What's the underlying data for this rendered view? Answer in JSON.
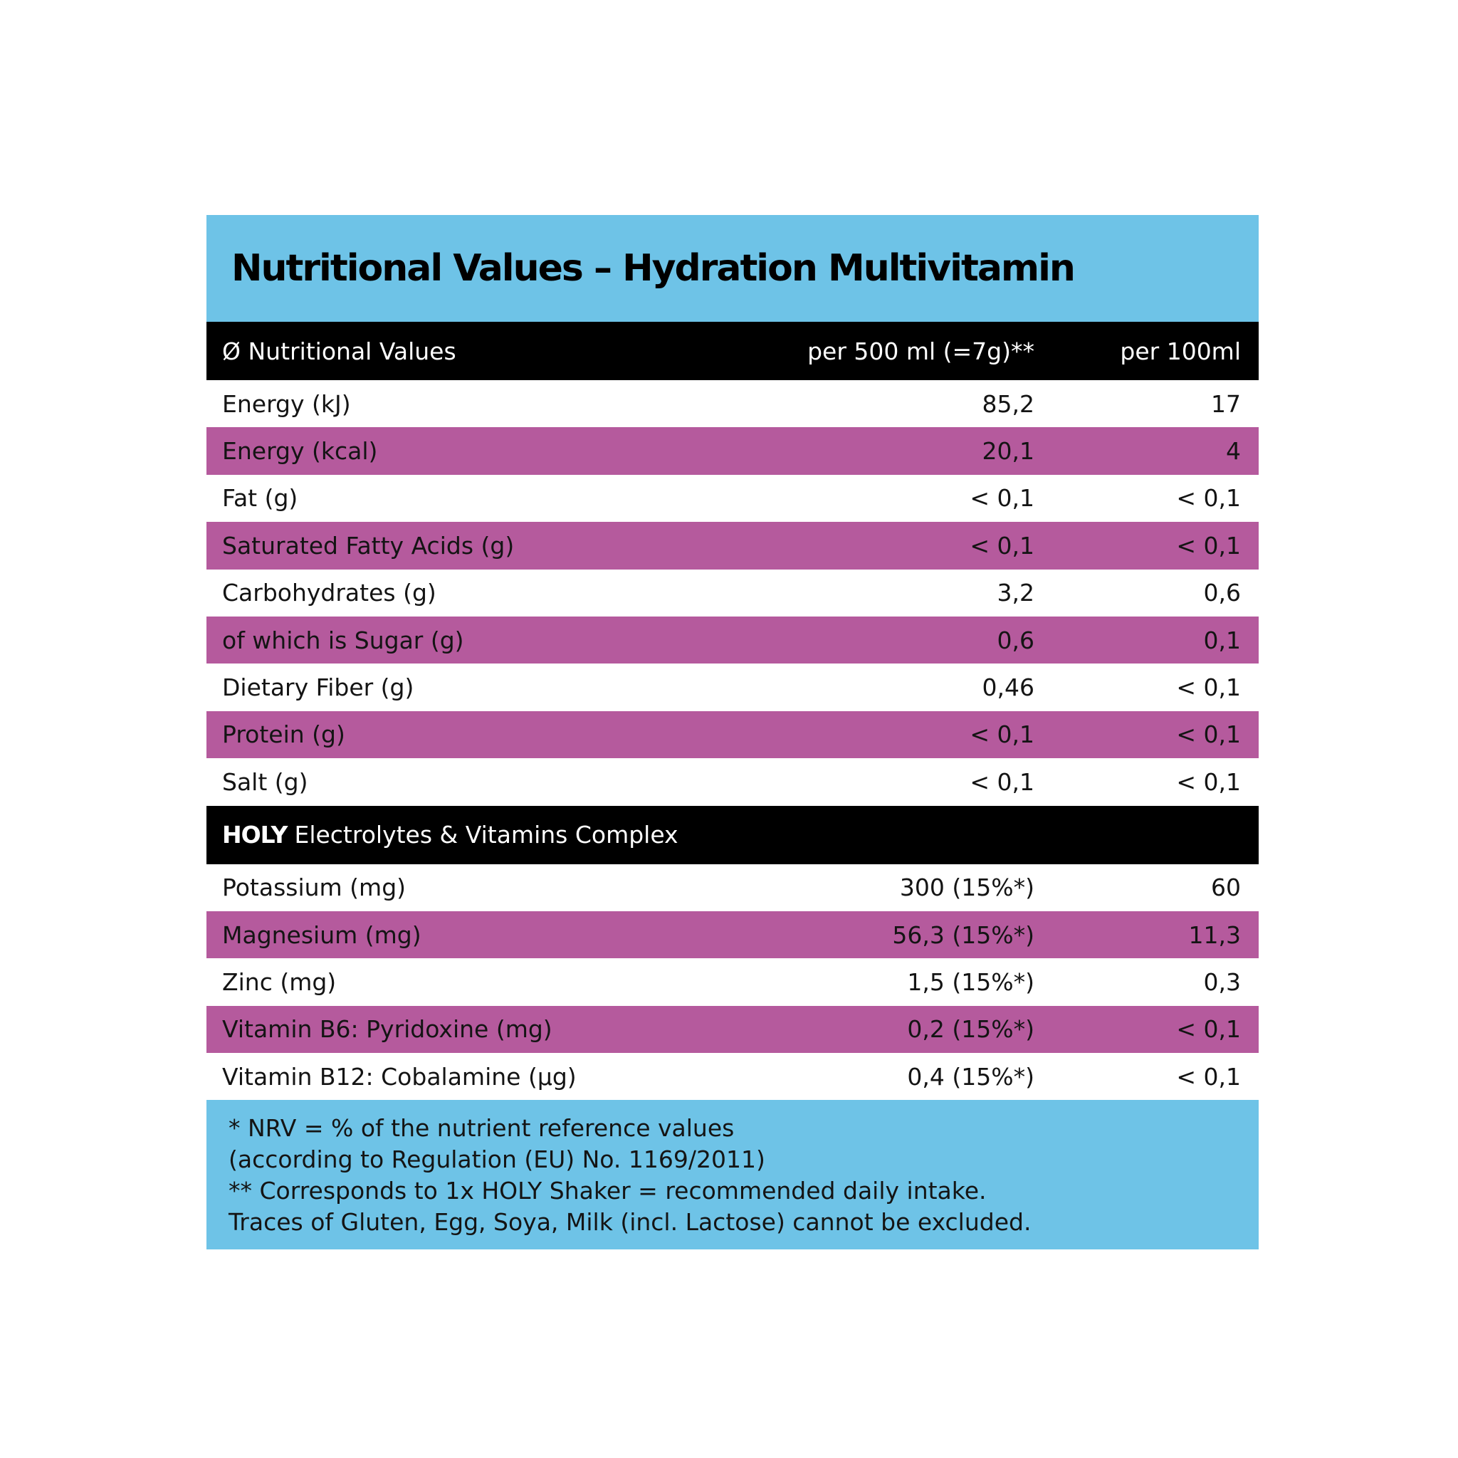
{
  "title": "Nutritional Values – Hydration Multivitamin",
  "header": {
    "col1": "Ø Nutritional Values",
    "col2": "per 500 ml (=7g)**",
    "col3": "per 100ml"
  },
  "nutrition_rows": [
    {
      "name": "Energy (kJ)",
      "per500": "85,2",
      "per100": "17"
    },
    {
      "name": "Energy (kcal)",
      "per500": "20,1",
      "per100": "4"
    },
    {
      "name": "Fat (g)",
      "per500": "< 0,1",
      "per100": "< 0,1"
    },
    {
      "name": "Saturated Fatty Acids (g)",
      "per500": "< 0,1",
      "per100": "< 0,1"
    },
    {
      "name": "Carbohydrates (g)",
      "per500": "3,2",
      "per100": "0,6"
    },
    {
      "name": "of which is Sugar (g)",
      "per500": "0,6",
      "per100": "0,1"
    },
    {
      "name": "Dietary Fiber (g)",
      "per500": "0,46",
      "per100": "< 0,1"
    },
    {
      "name": "Protein (g)",
      "per500": "< 0,1",
      "per100": "< 0,1"
    },
    {
      "name": "Salt (g)",
      "per500": "< 0,1",
      "per100": "< 0,1"
    }
  ],
  "section": {
    "brand": "HOLY",
    "label": "Electrolytes & Vitamins Complex"
  },
  "vitamin_rows": [
    {
      "name": "Potassium (mg)",
      "per500": "300 (15%*)",
      "per100": "60"
    },
    {
      "name": "Magnesium (mg)",
      "per500": "56,3 (15%*)",
      "per100": "11,3"
    },
    {
      "name": "Zinc (mg)",
      "per500": "1,5 (15%*)",
      "per100": "0,3"
    },
    {
      "name": "Vitamin B6: Pyridoxine (mg)",
      "per500": "0,2 (15%*)",
      "per100": "< 0,1"
    },
    {
      "name": "Vitamin B12: Cobalamine (µg)",
      "per500": "0,4 (15%*)",
      "per100": "< 0,1"
    }
  ],
  "footer": {
    "line1": "* NRV = % of the nutrient reference values",
    "line2": "(according to Regulation (EU) No. 1169/2011)",
    "line3": "** Corresponds to 1x HOLY Shaker = recommended daily intake.",
    "line4": "Traces of Gluten, Egg, Soya, Milk (incl. Lactose) cannot be excluded."
  },
  "colors": {
    "blue": "#6ec3e7",
    "purple": "#b55a9d",
    "black": "#000000"
  }
}
